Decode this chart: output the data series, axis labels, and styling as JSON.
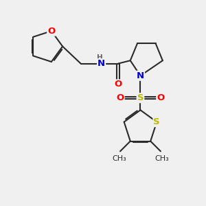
{
  "bg_color": "#f0f0f0",
  "bond_color": "#2a2a2a",
  "bond_width": 1.5,
  "atom_colors": {
    "O": "#ff0000",
    "N": "#0000cc",
    "S": "#bbbb00",
    "C": "#2a2a2a",
    "H": "#666666"
  },
  "font_size_atom": 9.5,
  "font_size_methyl": 8.0,
  "font_size_H": 7.5
}
